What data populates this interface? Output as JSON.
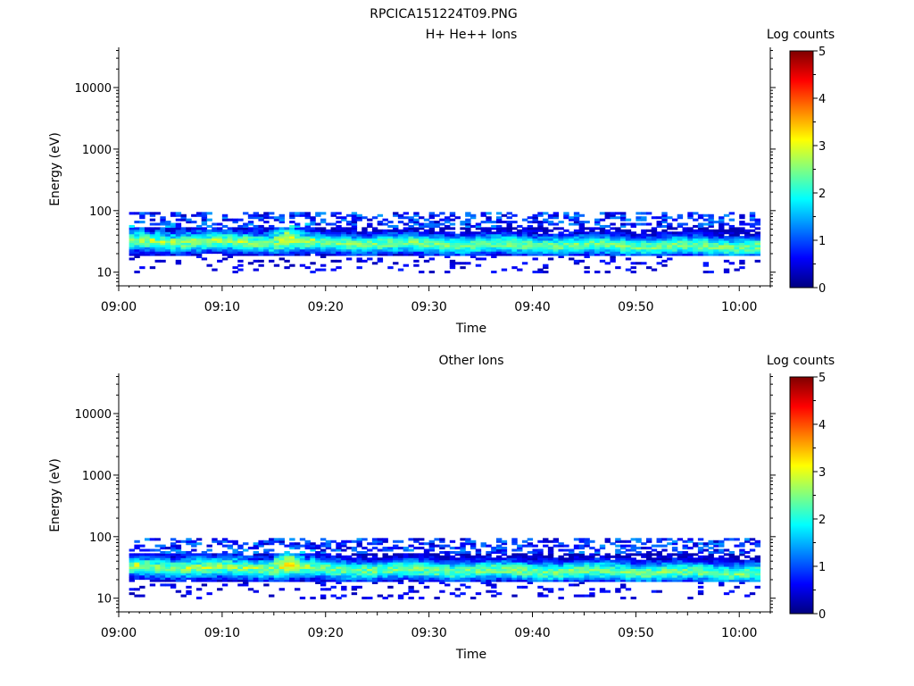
{
  "figure_title": "RPCICA151224T09.PNG",
  "colormap": [
    "#00007f",
    "#0000ff",
    "#0080ff",
    "#00ffff",
    "#80ff80",
    "#ffff00",
    "#ff8000",
    "#ff0000",
    "#7f0000"
  ],
  "chart_data": [
    {
      "type": "heatmap",
      "title": "H+ He++ Ions",
      "xlabel": "Time",
      "ylabel": "Energy (eV)",
      "x_ticks": [
        "09:00",
        "09:10",
        "09:20",
        "09:30",
        "09:40",
        "09:50",
        "10:00"
      ],
      "xlim": [
        "09:00",
        "10:03"
      ],
      "y_scale": "log",
      "y_ticks": [
        "10",
        "100",
        "1000",
        "10000"
      ],
      "ylim": [
        6,
        45000
      ],
      "grid": false,
      "data_range": {
        "time": [
          "09:01",
          "10:02"
        ],
        "energy_eV": [
          6,
          95
        ]
      },
      "peak": {
        "time": "09:16",
        "energy_eV": 45,
        "log_counts": 3.5
      },
      "colorbar": {
        "label": "Log counts",
        "range": [
          0,
          5
        ],
        "ticks": [
          "0",
          "1",
          "2",
          "3",
          "4",
          "5"
        ]
      }
    },
    {
      "type": "heatmap",
      "title": "Other Ions",
      "xlabel": "Time",
      "ylabel": "Energy (eV)",
      "x_ticks": [
        "09:00",
        "09:10",
        "09:20",
        "09:30",
        "09:40",
        "09:50",
        "10:00"
      ],
      "xlim": [
        "09:00",
        "10:03"
      ],
      "y_scale": "log",
      "y_ticks": [
        "10",
        "100",
        "1000",
        "10000"
      ],
      "ylim": [
        6,
        45000
      ],
      "grid": false,
      "data_range": {
        "time": [
          "09:01",
          "10:02"
        ],
        "energy_eV": [
          6,
          95
        ]
      },
      "peak": {
        "time": "09:16",
        "energy_eV": 45,
        "log_counts": 4.0
      },
      "colorbar": {
        "label": "Log counts",
        "range": [
          0,
          5
        ],
        "ticks": [
          "0",
          "1",
          "2",
          "3",
          "4",
          "5"
        ]
      }
    }
  ]
}
